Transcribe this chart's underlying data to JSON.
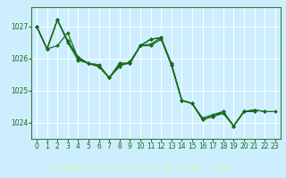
{
  "title": "Graphe pression niveau de la mer (hPa)",
  "bg_color": "#cceeff",
  "plot_bg_color": "#cceeff",
  "label_bg_color": "#3a7a3a",
  "grid_color": "#ffffff",
  "line_color": "#1a6b1a",
  "spine_color": "#3a7a3a",
  "xlim": [
    -0.5,
    23.5
  ],
  "ylim": [
    1023.5,
    1027.6
  ],
  "yticks": [
    1024,
    1025,
    1026,
    1027
  ],
  "xticks": [
    0,
    1,
    2,
    3,
    4,
    5,
    6,
    7,
    8,
    9,
    10,
    11,
    12,
    13,
    14,
    15,
    16,
    17,
    18,
    19,
    20,
    21,
    22,
    23
  ],
  "series": [
    [
      1027.0,
      1026.3,
      1027.2,
      1026.55,
      1026.05,
      1025.85,
      1025.8,
      1025.4,
      1025.85,
      1025.85,
      1026.4,
      1026.6,
      1026.65,
      1025.85,
      1024.7,
      1024.6,
      1024.15,
      1024.25,
      1024.35,
      1023.9,
      1024.35,
      1024.4,
      1024.35,
      1024.35
    ],
    [
      1027.0,
      1026.3,
      1027.2,
      1026.55,
      1026.0,
      1025.85,
      1025.8,
      1025.4,
      1025.85,
      1025.85,
      1026.4,
      1026.6,
      1026.65,
      1025.8,
      1024.7,
      1024.6,
      1024.1,
      1024.2,
      1024.35,
      1023.9,
      1024.35,
      1024.4,
      1024.35,
      null
    ],
    [
      1027.0,
      1026.3,
      1027.2,
      1026.5,
      1025.95,
      1025.85,
      1025.75,
      1025.4,
      1025.75,
      1025.9,
      1026.4,
      1026.45,
      1026.65,
      1025.8,
      1024.7,
      1024.6,
      1024.1,
      1024.2,
      1024.3,
      1023.9,
      1024.35,
      1024.35,
      null,
      null
    ],
    [
      1027.0,
      1026.3,
      1026.4,
      1026.8,
      1026.0,
      1025.85,
      1025.75,
      1025.4,
      1025.8,
      1025.85,
      1026.4,
      1026.4,
      1026.6,
      1025.8,
      1024.7,
      1024.6,
      1024.1,
      1024.2,
      1024.3,
      1023.9,
      1024.35,
      1024.35,
      null,
      null
    ]
  ],
  "marker": "D",
  "markersize": 2.0,
  "linewidth": 0.9,
  "tick_fontsize": 5.5,
  "title_fontsize": 6.5,
  "title_color": "#ccffcc",
  "tick_color": "#1a6b1a"
}
